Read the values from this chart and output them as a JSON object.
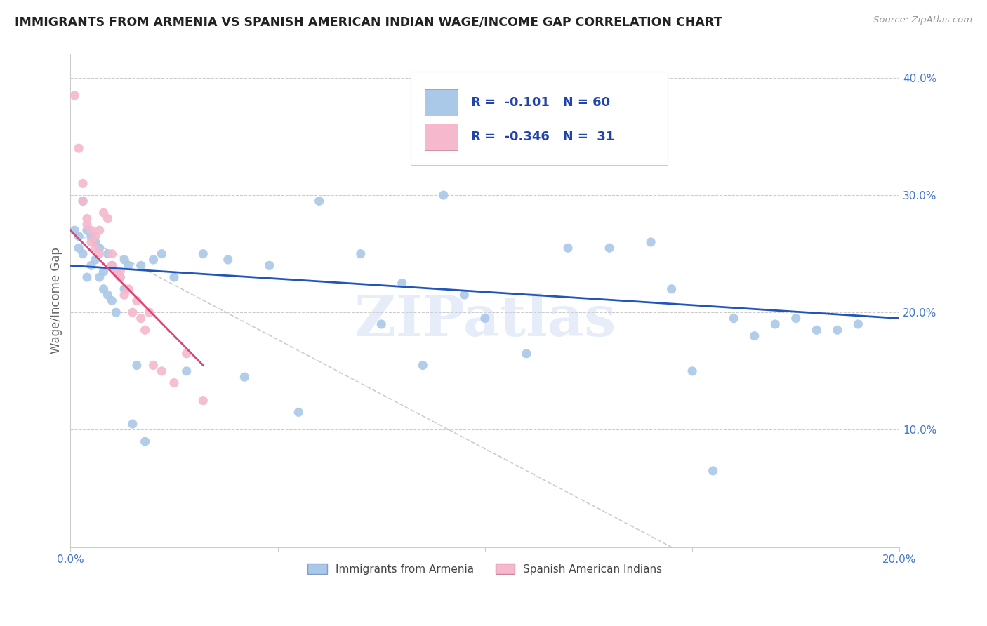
{
  "title": "IMMIGRANTS FROM ARMENIA VS SPANISH AMERICAN INDIAN WAGE/INCOME GAP CORRELATION CHART",
  "source": "Source: ZipAtlas.com",
  "ylabel": "Wage/Income Gap",
  "xlim": [
    0.0,
    0.2
  ],
  "ylim": [
    0.0,
    0.42
  ],
  "legend_label1": "Immigrants from Armenia",
  "legend_label2": "Spanish American Indians",
  "R1": "-0.101",
  "N1": "60",
  "R2": "-0.346",
  "N2": "31",
  "color_armenia": "#aac8e8",
  "color_spanish": "#f5b8cc",
  "trendline_armenia_color": "#2255bb",
  "trendline_spanish_color": "#dd4477",
  "trendline_dashed_color": "#cccccc",
  "watermark": "ZIPatlas",
  "armenia_x": [
    0.001,
    0.002,
    0.002,
    0.003,
    0.003,
    0.004,
    0.004,
    0.005,
    0.005,
    0.006,
    0.006,
    0.007,
    0.007,
    0.008,
    0.008,
    0.009,
    0.009,
    0.01,
    0.01,
    0.011,
    0.011,
    0.012,
    0.013,
    0.013,
    0.014,
    0.015,
    0.016,
    0.017,
    0.018,
    0.02,
    0.022,
    0.025,
    0.028,
    0.032,
    0.038,
    0.042,
    0.048,
    0.055,
    0.06,
    0.07,
    0.075,
    0.08,
    0.085,
    0.09,
    0.095,
    0.1,
    0.11,
    0.12,
    0.13,
    0.14,
    0.145,
    0.15,
    0.155,
    0.16,
    0.165,
    0.17,
    0.175,
    0.18,
    0.185,
    0.19
  ],
  "armenia_y": [
    0.27,
    0.265,
    0.255,
    0.295,
    0.25,
    0.27,
    0.23,
    0.265,
    0.24,
    0.26,
    0.245,
    0.23,
    0.255,
    0.235,
    0.22,
    0.25,
    0.215,
    0.24,
    0.21,
    0.235,
    0.2,
    0.23,
    0.245,
    0.22,
    0.24,
    0.105,
    0.155,
    0.24,
    0.09,
    0.245,
    0.25,
    0.23,
    0.15,
    0.25,
    0.245,
    0.145,
    0.24,
    0.115,
    0.295,
    0.25,
    0.19,
    0.225,
    0.155,
    0.3,
    0.215,
    0.195,
    0.165,
    0.255,
    0.255,
    0.26,
    0.22,
    0.15,
    0.065,
    0.195,
    0.18,
    0.19,
    0.195,
    0.185,
    0.185,
    0.19
  ],
  "spanish_x": [
    0.001,
    0.002,
    0.003,
    0.003,
    0.004,
    0.004,
    0.005,
    0.005,
    0.006,
    0.006,
    0.007,
    0.007,
    0.008,
    0.009,
    0.01,
    0.01,
    0.011,
    0.012,
    0.012,
    0.013,
    0.014,
    0.015,
    0.016,
    0.017,
    0.018,
    0.019,
    0.02,
    0.022,
    0.025,
    0.028,
    0.032
  ],
  "spanish_y": [
    0.385,
    0.34,
    0.31,
    0.295,
    0.28,
    0.275,
    0.27,
    0.26,
    0.265,
    0.255,
    0.27,
    0.25,
    0.285,
    0.28,
    0.25,
    0.24,
    0.235,
    0.235,
    0.23,
    0.215,
    0.22,
    0.2,
    0.21,
    0.195,
    0.185,
    0.2,
    0.155,
    0.15,
    0.14,
    0.165,
    0.125
  ],
  "armenia_trend_x": [
    0.0,
    0.2
  ],
  "armenia_trend_y": [
    0.24,
    0.195
  ],
  "spanish_trend_x": [
    0.0,
    0.032
  ],
  "spanish_trend_y": [
    0.27,
    0.155
  ],
  "dashed_trend_x": [
    0.0,
    0.145
  ],
  "dashed_trend_y": [
    0.27,
    0.0
  ]
}
